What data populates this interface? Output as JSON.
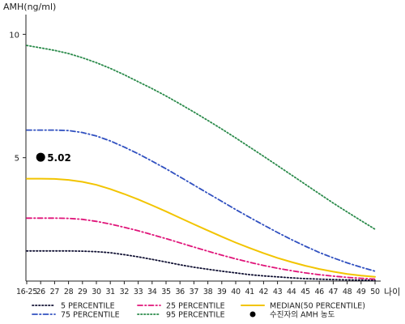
{
  "chart_data": {
    "type": "line",
    "ylabel": "AMH(ng/ml)",
    "xlabel": "나이",
    "ylim": [
      0,
      10.8
    ],
    "yticks": [
      5,
      10
    ],
    "grid": false,
    "legend_position": "bottom",
    "categories": [
      "16-25",
      "26",
      "27",
      "28",
      "29",
      "30",
      "31",
      "32",
      "33",
      "34",
      "35",
      "36",
      "37",
      "38",
      "39",
      "40",
      "41",
      "42",
      "43",
      "44",
      "45",
      "46",
      "47",
      "48",
      "49",
      "50"
    ],
    "series": [
      {
        "name": "5 PERCENTILE",
        "color": "#111133",
        "dash": "dotted",
        "values": [
          1.22,
          1.22,
          1.22,
          1.22,
          1.21,
          1.19,
          1.15,
          1.07,
          0.98,
          0.88,
          0.77,
          0.66,
          0.56,
          0.48,
          0.4,
          0.33,
          0.26,
          0.21,
          0.17,
          0.13,
          0.1,
          0.08,
          0.06,
          0.05,
          0.04,
          0.03
        ]
      },
      {
        "name": "25 PERCENTILE",
        "color": "#e0157a",
        "dash": "dashdot",
        "values": [
          2.55,
          2.55,
          2.55,
          2.54,
          2.5,
          2.42,
          2.31,
          2.18,
          2.04,
          1.88,
          1.72,
          1.55,
          1.38,
          1.21,
          1.05,
          0.9,
          0.76,
          0.63,
          0.52,
          0.42,
          0.33,
          0.26,
          0.2,
          0.15,
          0.11,
          0.08
        ]
      },
      {
        "name": "MEDIAN(50 PERCENTILE)",
        "color": "#f2c400",
        "dash": "solid",
        "values": [
          4.15,
          4.15,
          4.14,
          4.1,
          4.02,
          3.9,
          3.73,
          3.53,
          3.31,
          3.07,
          2.82,
          2.56,
          2.3,
          2.05,
          1.8,
          1.56,
          1.34,
          1.13,
          0.94,
          0.77,
          0.62,
          0.49,
          0.38,
          0.29,
          0.22,
          0.17
        ]
      },
      {
        "name": "75 PERCENTILE",
        "color": "#3050c0",
        "dash": "dashdot",
        "values": [
          6.12,
          6.12,
          6.12,
          6.1,
          6.02,
          5.88,
          5.68,
          5.43,
          5.16,
          4.86,
          4.55,
          4.22,
          3.89,
          3.56,
          3.23,
          2.9,
          2.58,
          2.27,
          1.97,
          1.68,
          1.41,
          1.16,
          0.94,
          0.74,
          0.56,
          0.4
        ]
      },
      {
        "name": "95 PERCENTILE",
        "color": "#2a8a4a",
        "dash": "dotted",
        "values": [
          9.55,
          9.45,
          9.35,
          9.22,
          9.05,
          8.85,
          8.62,
          8.36,
          8.08,
          7.8,
          7.5,
          7.18,
          6.85,
          6.51,
          6.16,
          5.8,
          5.43,
          5.06,
          4.68,
          4.3,
          3.92,
          3.54,
          3.16,
          2.8,
          2.45,
          2.1
        ]
      }
    ],
    "marker": {
      "name": "수진자의 AMH 농도",
      "label": "5.02",
      "x": "26",
      "y": 5.02,
      "color": "#000000"
    }
  }
}
